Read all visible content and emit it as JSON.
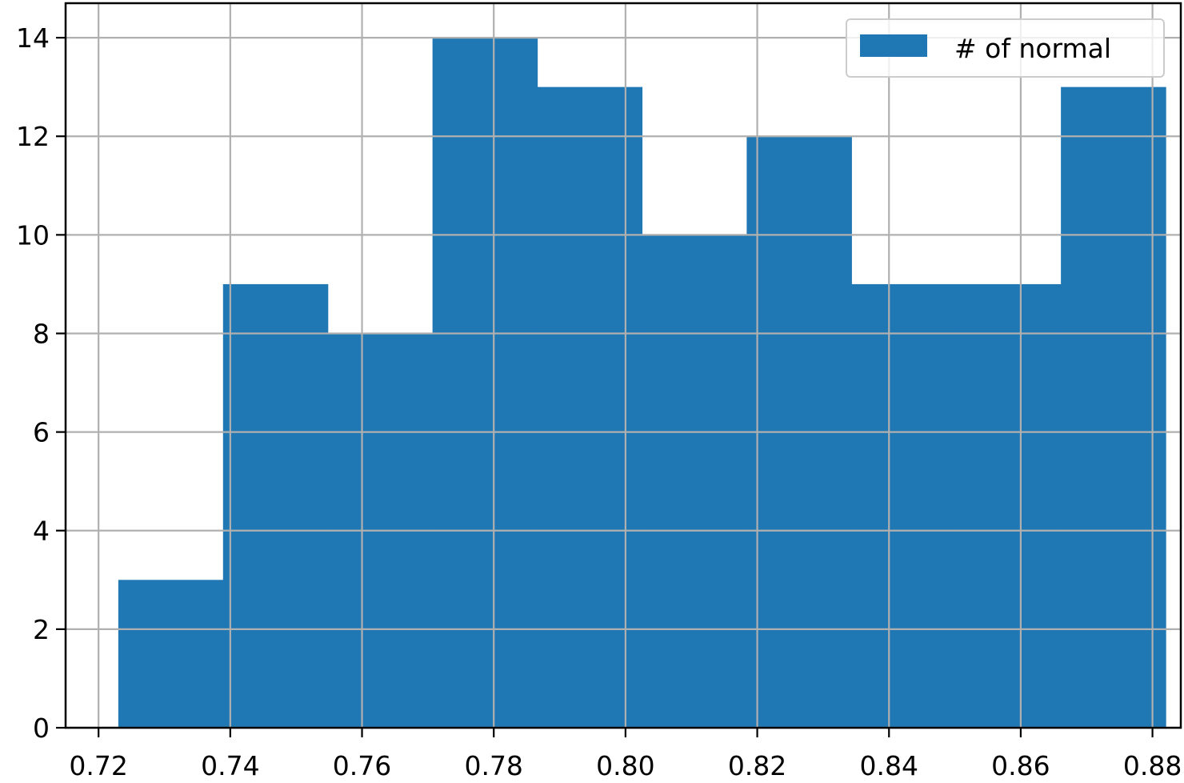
{
  "chart_data": {
    "type": "bar",
    "subtype": "histogram",
    "title": "",
    "xlabel": "",
    "ylabel": "",
    "xlim": [
      0.715,
      0.8843
    ],
    "ylim": [
      0,
      14.7
    ],
    "grid": true,
    "legend_position": "top-right",
    "bar_color": "#1f77b4",
    "grid_color": "#b0b0b0",
    "series": [
      {
        "name": "# of normal",
        "bins": [
          {
            "x0": 0.723,
            "x1": 0.7389,
            "count": 3
          },
          {
            "x0": 0.7389,
            "x1": 0.7548,
            "count": 9
          },
          {
            "x0": 0.7548,
            "x1": 0.7707,
            "count": 8
          },
          {
            "x0": 0.7707,
            "x1": 0.7866,
            "count": 14
          },
          {
            "x0": 0.7866,
            "x1": 0.8025,
            "count": 13
          },
          {
            "x0": 0.8025,
            "x1": 0.8184,
            "count": 10
          },
          {
            "x0": 0.8184,
            "x1": 0.8343,
            "count": 12
          },
          {
            "x0": 0.8343,
            "x1": 0.8502,
            "count": 9
          },
          {
            "x0": 0.8502,
            "x1": 0.8661,
            "count": 9
          },
          {
            "x0": 0.8661,
            "x1": 0.882,
            "count": 13
          }
        ]
      }
    ],
    "x_ticks": [
      0.72,
      0.74,
      0.76,
      0.78,
      0.8,
      0.82,
      0.84,
      0.86,
      0.88
    ],
    "x_tick_labels": [
      "0.72",
      "0.74",
      "0.76",
      "0.78",
      "0.80",
      "0.82",
      "0.84",
      "0.86",
      "0.88"
    ],
    "y_ticks": [
      0,
      2,
      4,
      6,
      8,
      10,
      12,
      14
    ],
    "y_tick_labels": [
      "0",
      "2",
      "4",
      "6",
      "8",
      "10",
      "12",
      "14"
    ]
  }
}
